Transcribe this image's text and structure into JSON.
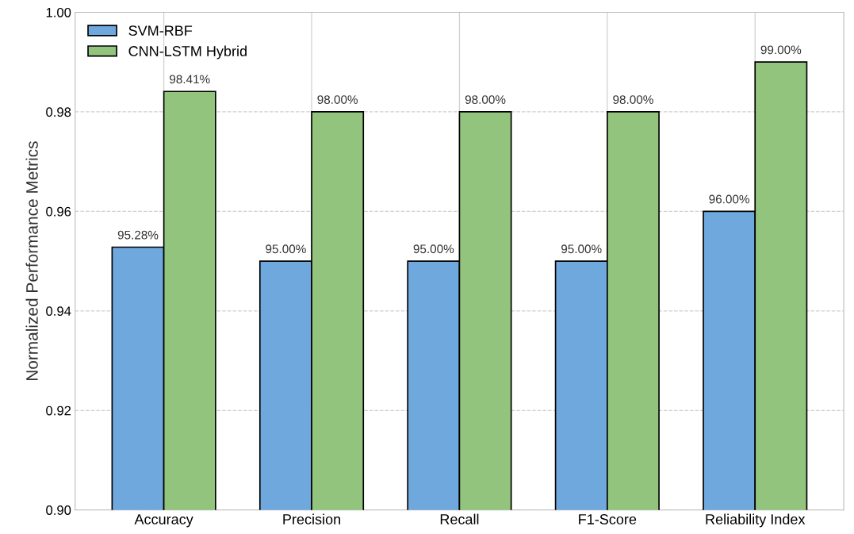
{
  "chart_data": {
    "type": "bar",
    "ylabel": "Normalized Performance Metrics",
    "categories": [
      "Accuracy",
      "Precision",
      "Recall",
      "F1-Score",
      "Reliability Index"
    ],
    "series": [
      {
        "name": "SVM-RBF",
        "color": "#6fa8dc",
        "values": [
          0.9528,
          0.95,
          0.95,
          0.95,
          0.96
        ],
        "value_labels": [
          "95.28%",
          "95.00%",
          "95.00%",
          "95.00%",
          "96.00%"
        ]
      },
      {
        "name": "CNN-LSTM Hybrid",
        "color": "#93c47d",
        "values": [
          0.9841,
          0.98,
          0.98,
          0.98,
          0.99
        ],
        "value_labels": [
          "98.41%",
          "98.00%",
          "98.00%",
          "98.00%",
          "99.00%"
        ]
      }
    ],
    "ylim": [
      0.9,
      1.0
    ],
    "yticks": [
      {
        "value": 0.9,
        "label": "0.90"
      },
      {
        "value": 0.92,
        "label": "0.92"
      },
      {
        "value": 0.94,
        "label": "0.94"
      },
      {
        "value": 0.96,
        "label": "0.96"
      },
      {
        "value": 0.98,
        "label": "0.98"
      },
      {
        "value": 1.0,
        "label": "1.00"
      }
    ],
    "grid": true,
    "legend": "top left"
  }
}
